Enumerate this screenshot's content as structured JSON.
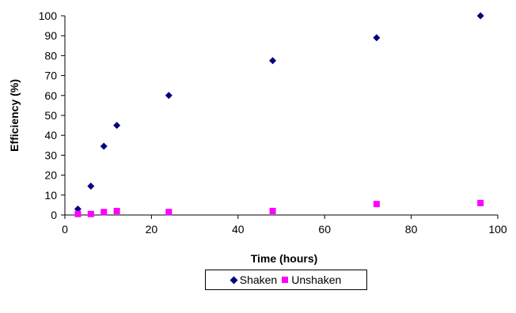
{
  "chart_data": {
    "type": "scatter",
    "xlabel": "Time (hours)",
    "ylabel": "Efficiency (%)",
    "xlim": [
      0,
      100
    ],
    "ylim": [
      0,
      100
    ],
    "xticks": [
      0,
      20,
      40,
      60,
      80,
      100
    ],
    "yticks": [
      0,
      10,
      20,
      30,
      40,
      50,
      60,
      70,
      80,
      90,
      100
    ],
    "grid": false,
    "legend_position": "bottom",
    "series": [
      {
        "name": "Shaken",
        "marker": "diamond",
        "color": "#000080",
        "x": [
          3,
          6,
          9,
          12,
          24,
          48,
          72,
          96
        ],
        "y": [
          3,
          14.5,
          34.5,
          45,
          60,
          77.5,
          89,
          100
        ]
      },
      {
        "name": "Unshaken",
        "marker": "square",
        "color": "#FF00FF",
        "x": [
          3,
          6,
          9,
          12,
          24,
          48,
          72,
          96
        ],
        "y": [
          0.5,
          0.5,
          1.5,
          2,
          1.5,
          2,
          5.5,
          6
        ]
      }
    ]
  }
}
